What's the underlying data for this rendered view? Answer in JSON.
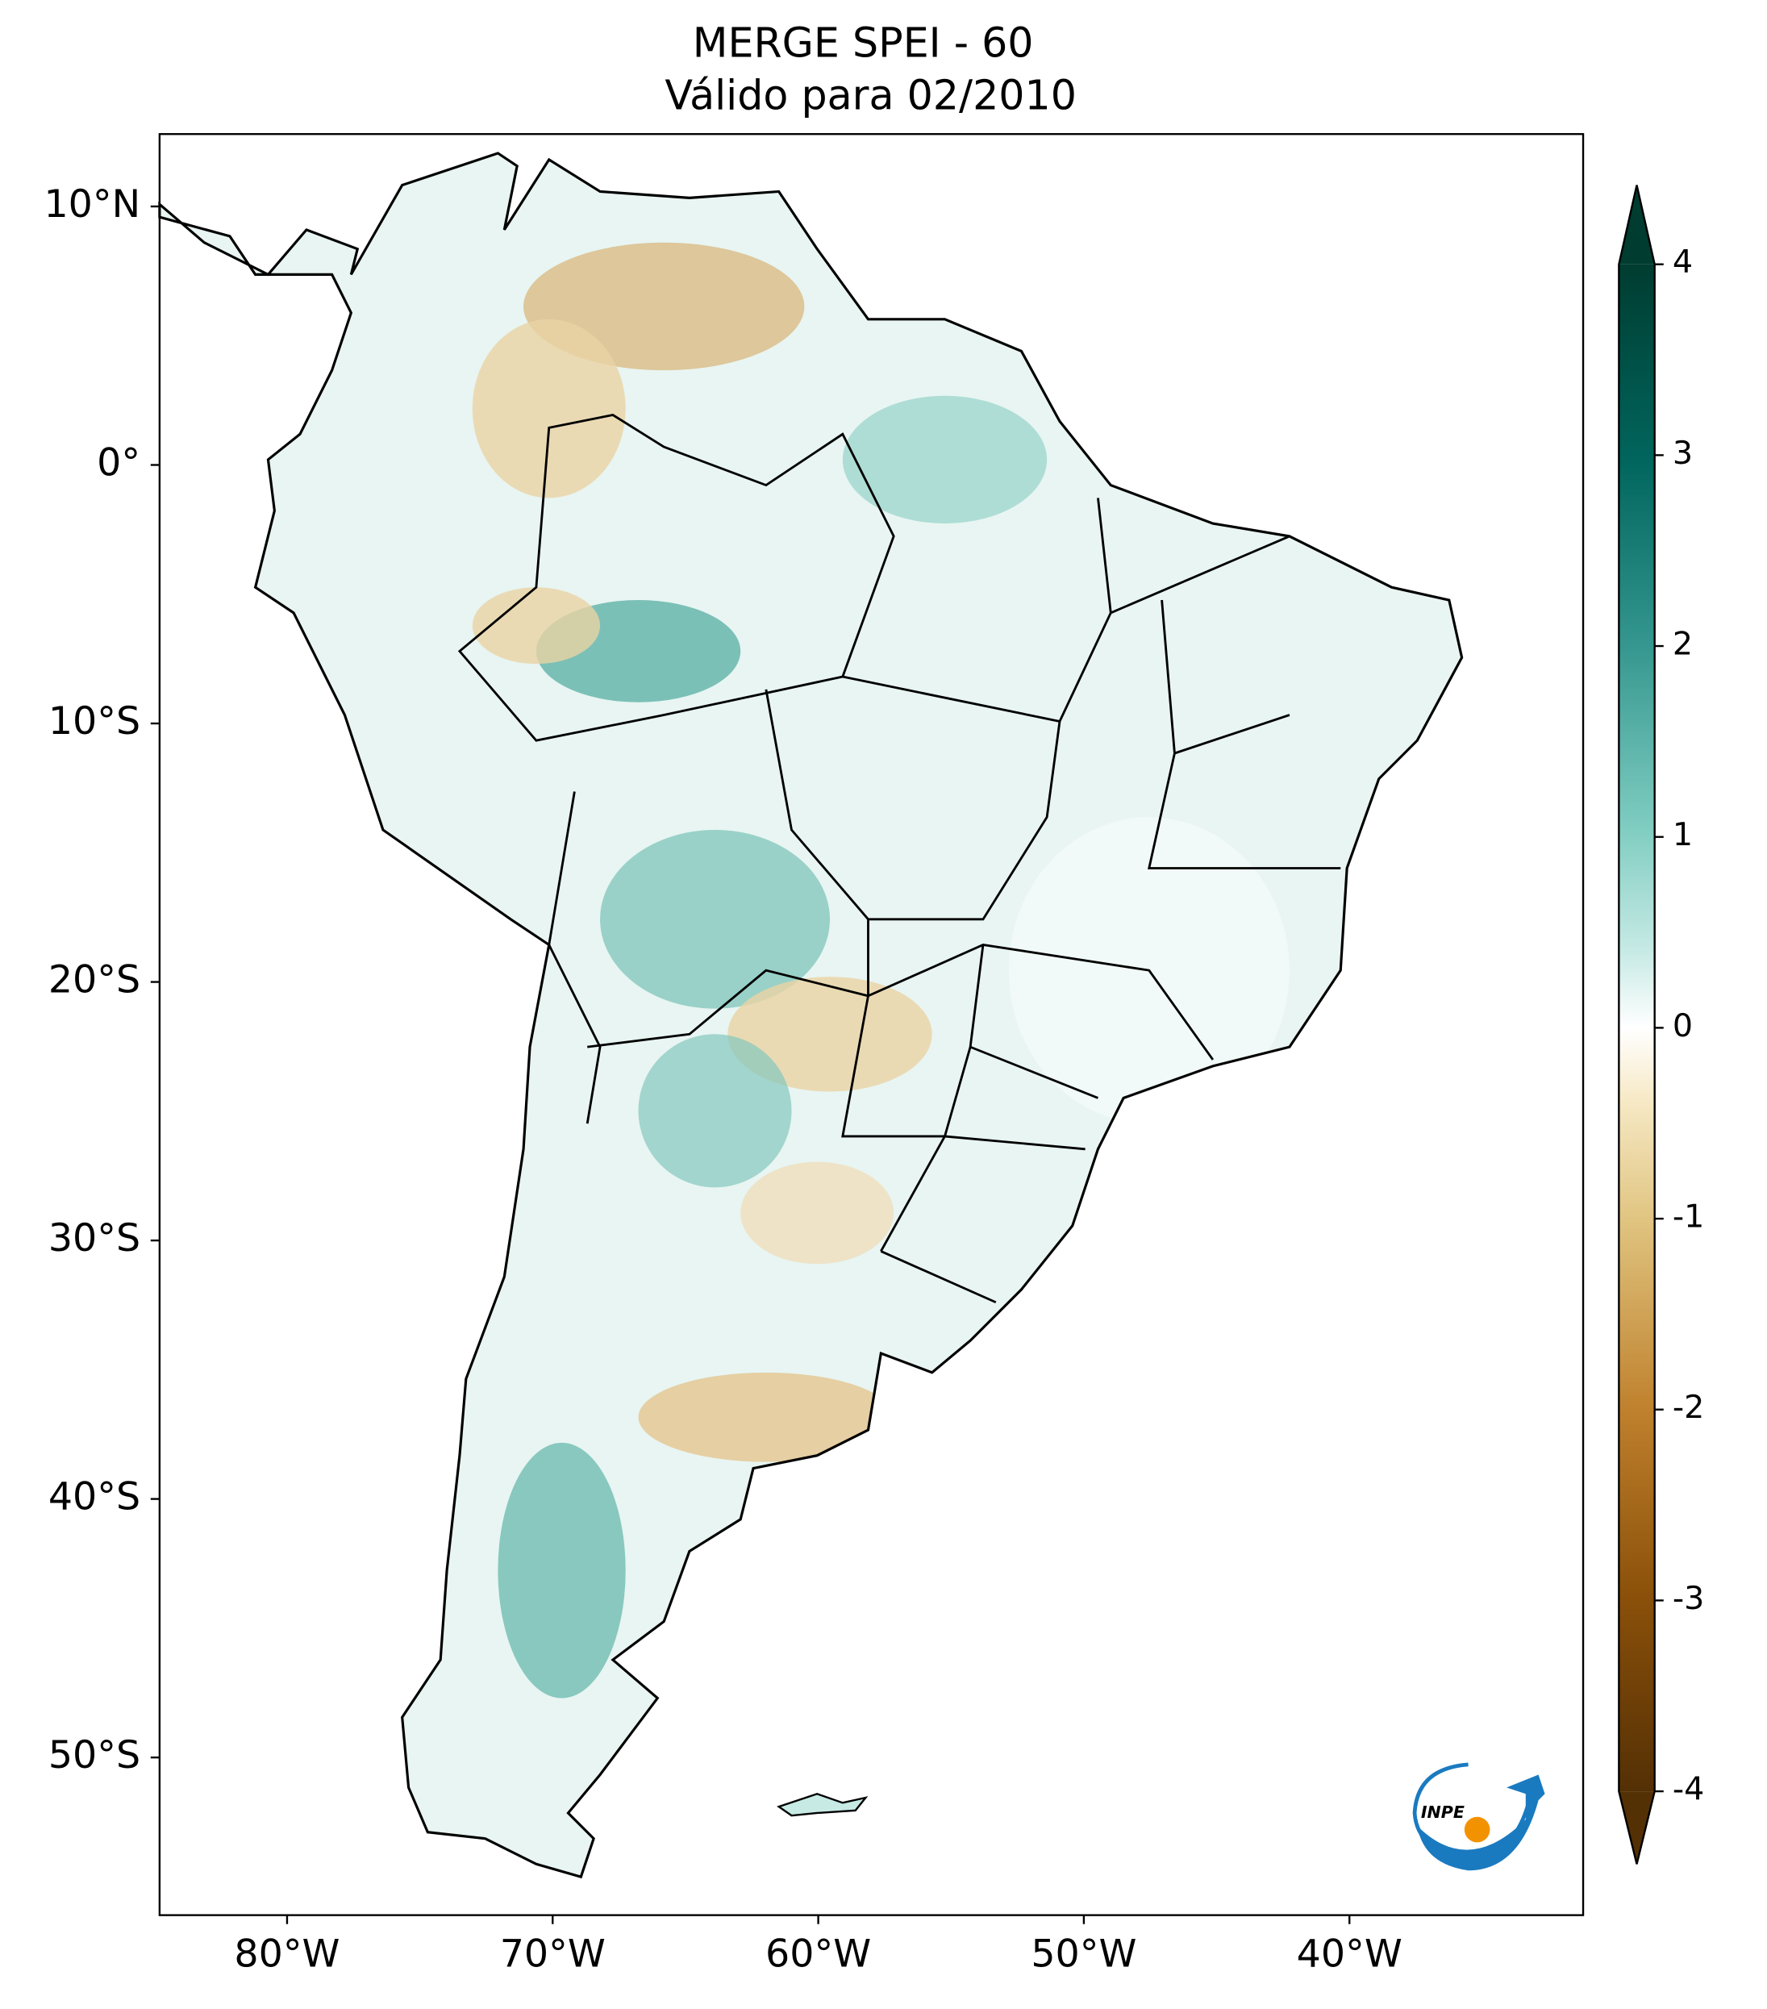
{
  "title": [
    "MERGE   SPEI - 60",
    "Válido para 02/2010"
  ],
  "map": {
    "xlim": [
      -84.8,
      -31.2
    ],
    "ylim": [
      -56.1,
      12.8
    ],
    "xticks": [
      {
        "value": -80,
        "label": "80°W"
      },
      {
        "value": -70,
        "label": "70°W"
      },
      {
        "value": -60,
        "label": "60°W"
      },
      {
        "value": -50,
        "label": "50°W"
      },
      {
        "value": -40,
        "label": "40°W"
      }
    ],
    "yticks": [
      {
        "value": 10,
        "label": "10°N"
      },
      {
        "value": 0,
        "label": "0°"
      },
      {
        "value": -10,
        "label": "10°S"
      },
      {
        "value": -20,
        "label": "20°S"
      },
      {
        "value": -30,
        "label": "30°S"
      },
      {
        "value": -40,
        "label": "40°S"
      },
      {
        "value": -50,
        "label": "50°S"
      }
    ]
  },
  "colorbar": {
    "lim": [
      -4,
      4
    ],
    "ticks": [
      -4,
      -3,
      -2,
      -1,
      0,
      1,
      2,
      3,
      4
    ]
  },
  "logo": "INPE"
}
